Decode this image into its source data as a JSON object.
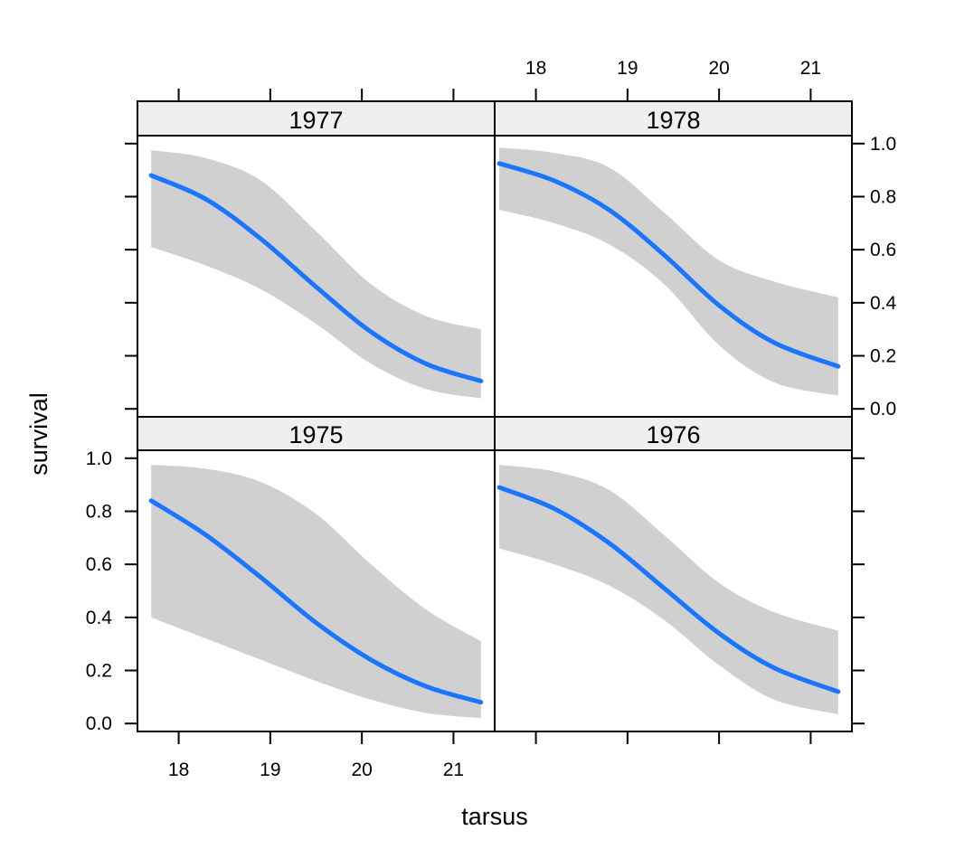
{
  "chart_data": {
    "type": "line",
    "layout": "lattice-2x2",
    "xlabel": "tarsus",
    "ylabel": "survival",
    "xlim": [
      17.55,
      21.45
    ],
    "ylim": [
      -0.03,
      1.03
    ],
    "x_ticks": [
      "18",
      "19",
      "20",
      "21"
    ],
    "y_ticks": [
      "0.0",
      "0.2",
      "0.4",
      "0.6",
      "0.8",
      "1.0"
    ],
    "colors": {
      "line": "#1a75ff",
      "band": "#d0d0d0",
      "strip": "#efefef",
      "frame": "#000000"
    },
    "panels": [
      {
        "name": "1977",
        "row": "top",
        "col": "left",
        "x": [
          17.7,
          18.3,
          18.9,
          19.5,
          20.1,
          20.7,
          21.3
        ],
        "fit": [
          0.88,
          0.79,
          0.64,
          0.46,
          0.29,
          0.17,
          0.105
        ],
        "lower": [
          0.61,
          0.54,
          0.45,
          0.32,
          0.17,
          0.075,
          0.04
        ],
        "upper": [
          0.975,
          0.945,
          0.86,
          0.67,
          0.47,
          0.35,
          0.3
        ]
      },
      {
        "name": "1978",
        "row": "top",
        "col": "right",
        "x": [
          17.6,
          18.2,
          18.8,
          19.4,
          20.0,
          20.6,
          21.3
        ],
        "fit": [
          0.925,
          0.86,
          0.75,
          0.58,
          0.39,
          0.25,
          0.16
        ],
        "lower": [
          0.75,
          0.7,
          0.62,
          0.47,
          0.24,
          0.1,
          0.05
        ],
        "upper": [
          0.985,
          0.965,
          0.91,
          0.74,
          0.56,
          0.48,
          0.42
        ]
      },
      {
        "name": "1975",
        "row": "bottom",
        "col": "left",
        "x": [
          17.7,
          18.3,
          18.9,
          19.5,
          20.1,
          20.7,
          21.3
        ],
        "fit": [
          0.84,
          0.71,
          0.55,
          0.38,
          0.24,
          0.14,
          0.08
        ],
        "lower": [
          0.4,
          0.32,
          0.24,
          0.16,
          0.09,
          0.04,
          0.02
        ],
        "upper": [
          0.975,
          0.96,
          0.91,
          0.79,
          0.6,
          0.43,
          0.31
        ]
      },
      {
        "name": "1976",
        "row": "bottom",
        "col": "right",
        "x": [
          17.6,
          18.2,
          18.8,
          19.4,
          20.0,
          20.6,
          21.3
        ],
        "fit": [
          0.89,
          0.81,
          0.68,
          0.51,
          0.34,
          0.21,
          0.12
        ],
        "lower": [
          0.66,
          0.6,
          0.52,
          0.39,
          0.22,
          0.09,
          0.035
        ],
        "upper": [
          0.975,
          0.95,
          0.88,
          0.71,
          0.53,
          0.42,
          0.35
        ]
      }
    ]
  }
}
